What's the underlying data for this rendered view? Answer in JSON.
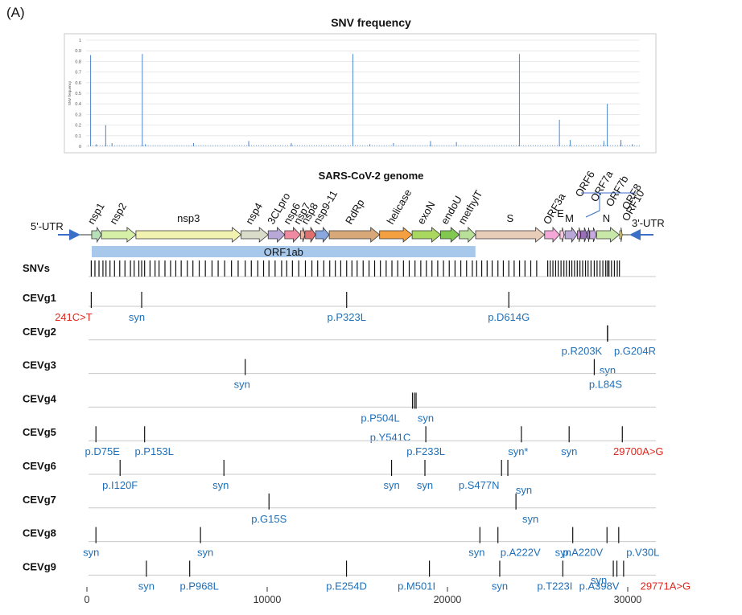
{
  "panel_label": "(A)",
  "snv_chart": {
    "title": "SNV frequency",
    "ylabel": "SNV frequency",
    "ylim": [
      0,
      1
    ],
    "yticks": [
      "0",
      "0.1",
      "0.2",
      "0.3",
      "0.4",
      "0.5",
      "0.6",
      "0.7",
      "0.8",
      "0.9",
      "1"
    ],
    "bar_color": "#5b8fd0"
  },
  "chart_data": {
    "type": "bar",
    "title": "SNV frequency",
    "xlabel": "",
    "ylabel": "SNV frequency",
    "ylim": [
      0,
      1
    ],
    "xlim": [
      0,
      29903
    ],
    "x": [
      241,
      550,
      1059,
      1400,
      3037,
      3200,
      5800,
      8782,
      11083,
      14408,
      15324,
      16600,
      18600,
      20000,
      23403,
      25563,
      26144,
      27964,
      28144,
      28881,
      28882,
      28883,
      29500
    ],
    "values": [
      0.86,
      0.02,
      0.2,
      0.03,
      0.87,
      0.02,
      0.03,
      0.05,
      0.03,
      0.87,
      0.02,
      0.03,
      0.05,
      0.04,
      0.87,
      0.25,
      0.06,
      0.05,
      0.4,
      0.06,
      0.05,
      0.04,
      0.02
    ]
  },
  "genome": {
    "title": "SARS-CoV-2 genome",
    "utr5": "5'-UTR",
    "utr3": "3'-UTR",
    "orf1ab": "ORF1ab",
    "genes": [
      {
        "name": "nsp1",
        "start": 266,
        "end": 805,
        "color": "#b8e0b8"
      },
      {
        "name": "nsp2",
        "start": 806,
        "end": 2719,
        "color": "#d6f0a8"
      },
      {
        "name": "nsp3",
        "start": 2720,
        "end": 8554,
        "color": "#f2f2b0"
      },
      {
        "name": "nsp4",
        "start": 8555,
        "end": 10054,
        "color": "#d8dcc8"
      },
      {
        "name": "3CLpro",
        "start": 10055,
        "end": 10972,
        "color": "#b7a8d8"
      },
      {
        "name": "nsp6",
        "start": 10973,
        "end": 11842,
        "color": "#f08aa0"
      },
      {
        "name": "nsp7",
        "start": 11843,
        "end": 12091,
        "color": "#f0b0a0"
      },
      {
        "name": "nsp8",
        "start": 12092,
        "end": 12685,
        "color": "#e07070"
      },
      {
        "name": "nsp9-11",
        "start": 12686,
        "end": 13442,
        "color": "#8aa8e0"
      },
      {
        "name": "RdRp",
        "start": 13442,
        "end": 16236,
        "color": "#d8a878"
      },
      {
        "name": "helicase",
        "start": 16237,
        "end": 18039,
        "color": "#f5a040"
      },
      {
        "name": "exoN",
        "start": 18040,
        "end": 19620,
        "color": "#a8d860"
      },
      {
        "name": "endoU",
        "start": 19621,
        "end": 20658,
        "color": "#80c850"
      },
      {
        "name": "methylT",
        "start": 20659,
        "end": 21552,
        "color": "#b8e098"
      },
      {
        "name": "S",
        "start": 21563,
        "end": 25384,
        "color": "#e8cdb8"
      },
      {
        "name": "ORF3a",
        "start": 25393,
        "end": 26220,
        "color": "#f4a8d8"
      },
      {
        "name": "E",
        "start": 26245,
        "end": 26472,
        "color": "#f8c8e0"
      },
      {
        "name": "M",
        "start": 26523,
        "end": 27191,
        "color": "#b8a8d8"
      },
      {
        "name": "ORF6",
        "start": 27202,
        "end": 27387,
        "color": "#c890d0"
      },
      {
        "name": "ORF7a",
        "start": 27394,
        "end": 27759,
        "color": "#9870b8"
      },
      {
        "name": "ORF7b",
        "start": 27756,
        "end": 27887,
        "color": "#a080c8"
      },
      {
        "name": "ORF8",
        "start": 27894,
        "end": 28259,
        "color": "#c8a8e0"
      },
      {
        "name": "N",
        "start": 28274,
        "end": 29533,
        "color": "#c8e8a8"
      },
      {
        "name": "ORF10",
        "start": 29558,
        "end": 29674,
        "color": "#f0e060"
      }
    ]
  },
  "snvs_label": "SNVs",
  "snvs_positions": [
    241,
    445,
    670,
    890,
    1059,
    1280,
    1530,
    1820,
    2110,
    2416,
    2620,
    2880,
    3037,
    3200,
    3500,
    3780,
    4002,
    4330,
    4640,
    4930,
    5230,
    5570,
    5880,
    6230,
    6570,
    6940,
    7280,
    7640,
    8020,
    8390,
    8782,
    9120,
    9480,
    9800,
    10097,
    10440,
    10800,
    11083,
    11400,
    11750,
    12120,
    12480,
    12800,
    13140,
    13470,
    13780,
    14080,
    14408,
    14700,
    14990,
    15324,
    15650,
    15960,
    16280,
    16600,
    16920,
    17240,
    17560,
    17880,
    18200,
    18520,
    18830,
    19140,
    19460,
    19780,
    20100,
    20420,
    20740,
    21060,
    21380,
    21620,
    21900,
    22200,
    22480,
    22800,
    23100,
    23403,
    23700,
    24000,
    24300,
    24620,
    24950,
    25563,
    25700,
    25850,
    26000,
    26144,
    26300,
    26460,
    26600,
    26760,
    26900,
    27050,
    27200,
    27350,
    27500,
    27660,
    27800,
    27964,
    28144,
    28300,
    28460,
    28620,
    28780,
    28881,
    28960,
    29100,
    29260,
    29420,
    29540
  ],
  "axis": {
    "ticks": [
      {
        "value": 0,
        "label": "0"
      },
      {
        "value": 10000,
        "label": "10000"
      },
      {
        "value": 20000,
        "label": "20000"
      },
      {
        "value": 30000,
        "label": "30000"
      }
    ]
  },
  "groups": [
    {
      "name": "CEVg1",
      "marks": [
        {
          "pos": 241,
          "label": "241C>T",
          "color": "#e0251b",
          "dx": -22
        },
        {
          "pos": 3037,
          "label": "syn",
          "color": "#1e6fb8",
          "dx": -6
        },
        {
          "pos": 14408,
          "label": "p.P323L",
          "color": "#1e6fb8",
          "dx": 0
        },
        {
          "pos": 23403,
          "label": "p.D614G",
          "color": "#1e6fb8",
          "dx": 0
        }
      ]
    },
    {
      "name": "CEVg2",
      "marks": [
        {
          "pos": 28881,
          "label": "p.R203K",
          "color": "#1e6fb8",
          "dx": -32
        },
        {
          "pos": 28882,
          "label": "syn",
          "color": "#1e6fb8",
          "dx": 0,
          "row": 2
        },
        {
          "pos": 28883,
          "label": "p.G204R",
          "color": "#1e6fb8",
          "dx": 34
        }
      ]
    },
    {
      "name": "CEVg3",
      "marks": [
        {
          "pos": 8782,
          "label": "syn",
          "color": "#1e6fb8",
          "dx": -4
        },
        {
          "pos": 28144,
          "label": "p.L84S",
          "color": "#1e6fb8",
          "dx": 14
        }
      ]
    },
    {
      "name": "CEVg4",
      "marks": [
        {
          "pos": 18060,
          "label": "p.P504L",
          "color": "#1e6fb8",
          "dx": -40
        },
        {
          "pos": 18170,
          "label": "p.Y541C",
          "color": "#1e6fb8",
          "dx": -30,
          "row": 2
        },
        {
          "pos": 18260,
          "label": "syn",
          "color": "#1e6fb8",
          "dx": 12
        }
      ]
    },
    {
      "name": "CEVg5",
      "marks": [
        {
          "pos": 500,
          "label": "p.D75E",
          "color": "#1e6fb8",
          "dx": 8
        },
        {
          "pos": 3200,
          "label": "p.P153L",
          "color": "#1e6fb8",
          "dx": 12
        },
        {
          "pos": 18800,
          "label": "p.F233L",
          "color": "#1e6fb8",
          "dx": 0
        },
        {
          "pos": 24100,
          "label": "syn*",
          "color": "#1e6fb8",
          "dx": -4
        },
        {
          "pos": 26750,
          "label": "syn",
          "color": "#1e6fb8",
          "dx": 0
        },
        {
          "pos": 29700,
          "label": "29700A>G",
          "color": "#e0251b",
          "dx": 20
        }
      ]
    },
    {
      "name": "CEVg6",
      "marks": [
        {
          "pos": 1840,
          "label": "p.I120F",
          "color": "#1e6fb8",
          "dx": 0
        },
        {
          "pos": 7600,
          "label": "syn",
          "color": "#1e6fb8",
          "dx": -4
        },
        {
          "pos": 16900,
          "label": "syn",
          "color": "#1e6fb8",
          "dx": 0
        },
        {
          "pos": 18750,
          "label": "syn",
          "color": "#1e6fb8",
          "dx": 0
        },
        {
          "pos": 23000,
          "label": "p.S477N",
          "color": "#1e6fb8",
          "dx": -28
        },
        {
          "pos": 23350,
          "label": "syn",
          "color": "#1e6fb8",
          "dx": 20,
          "row": 0.5
        }
      ]
    },
    {
      "name": "CEVg7",
      "marks": [
        {
          "pos": 10100,
          "label": "p.G15S",
          "color": "#1e6fb8",
          "dx": 0
        },
        {
          "pos": 23800,
          "label": "syn",
          "color": "#1e6fb8",
          "dx": 18
        }
      ]
    },
    {
      "name": "CEVg8",
      "marks": [
        {
          "pos": 500,
          "label": "syn",
          "color": "#1e6fb8",
          "dx": -6
        },
        {
          "pos": 6300,
          "label": "syn",
          "color": "#1e6fb8",
          "dx": 6
        },
        {
          "pos": 21800,
          "label": "syn",
          "color": "#1e6fb8",
          "dx": -4
        },
        {
          "pos": 22800,
          "label": "p.A222V",
          "color": "#1e6fb8",
          "dx": 28
        },
        {
          "pos": 26950,
          "label": "syn",
          "color": "#1e6fb8",
          "dx": -12
        },
        {
          "pos": 28850,
          "label": "p.A220V",
          "color": "#1e6fb8",
          "dx": -30
        },
        {
          "pos": 29500,
          "label": "p.V30L",
          "color": "#1e6fb8",
          "dx": 30
        }
      ]
    },
    {
      "name": "CEVg9",
      "marks": [
        {
          "pos": 3300,
          "label": "syn",
          "color": "#1e6fb8",
          "dx": 0
        },
        {
          "pos": 5700,
          "label": "p.P968L",
          "color": "#1e6fb8",
          "dx": 12
        },
        {
          "pos": 14400,
          "label": "p.E254D",
          "color": "#1e6fb8",
          "dx": 0
        },
        {
          "pos": 19000,
          "label": "p.M501I",
          "color": "#1e6fb8",
          "dx": -16
        },
        {
          "pos": 22900,
          "label": "syn",
          "color": "#1e6fb8",
          "dx": 0
        },
        {
          "pos": 26400,
          "label": "p.T223I",
          "color": "#1e6fb8",
          "dx": -10
        },
        {
          "pos": 29200,
          "label": "syn",
          "color": "#1e6fb8",
          "dx": -18,
          "row": -0.6
        },
        {
          "pos": 29400,
          "label": "p.A398V",
          "color": "#1e6fb8",
          "dx": -22
        },
        {
          "pos": 29771,
          "label": "29771A>G",
          "color": "#e0251b",
          "dx": 52
        }
      ]
    }
  ]
}
